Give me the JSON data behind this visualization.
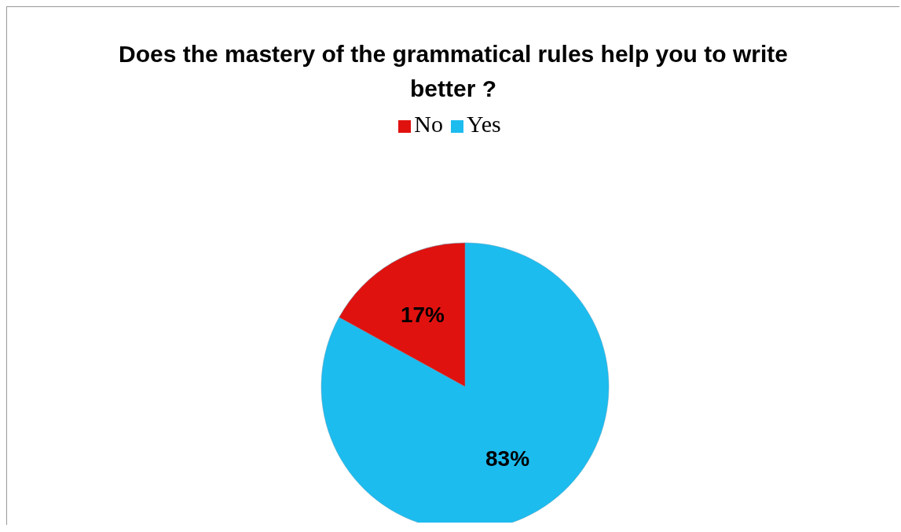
{
  "chart_data": {
    "type": "pie",
    "title": "Does the mastery of the grammatical rules help you to write better ?",
    "categories": [
      "Yes",
      "No"
    ],
    "values": [
      83,
      17
    ],
    "colors": [
      "#1cbcef",
      "#e0120f"
    ],
    "value_labels": [
      "83%",
      "17%"
    ],
    "legend": "top"
  }
}
